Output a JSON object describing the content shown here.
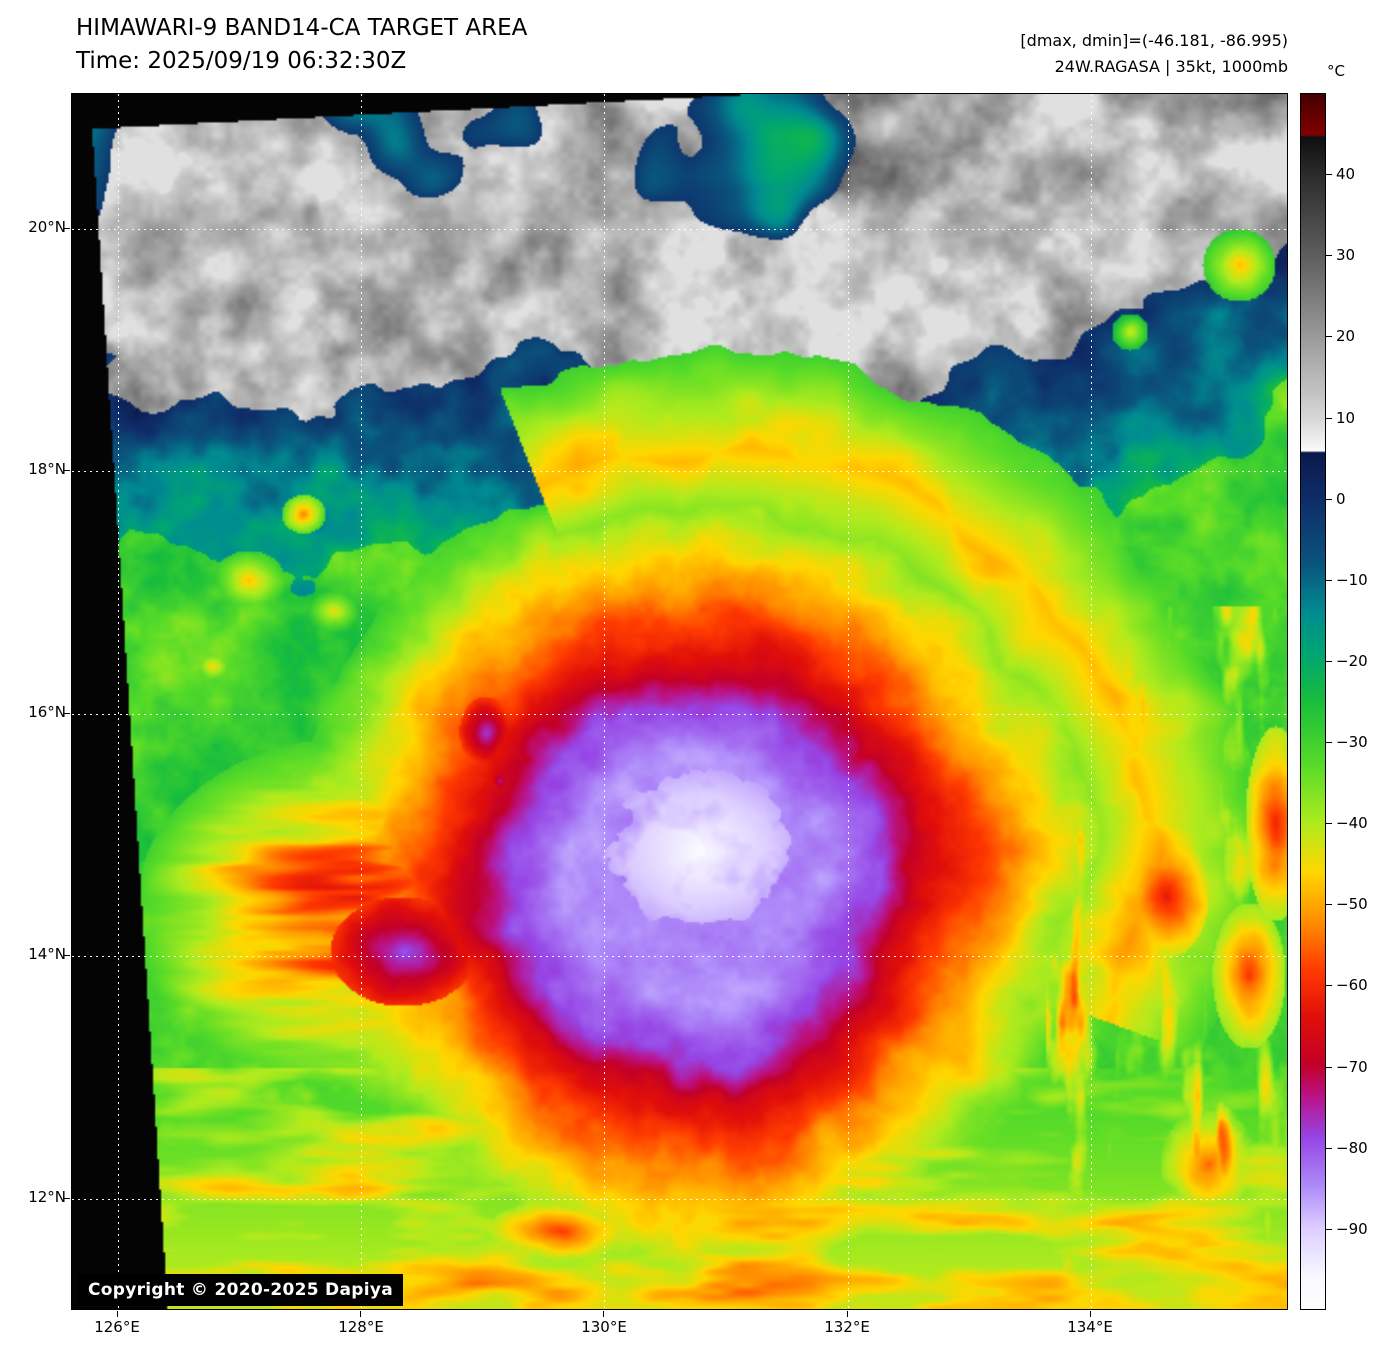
{
  "header": {
    "title": "HIMAWARI-9 BAND14-CA TARGET AREA",
    "time": "Time: 2025/09/19 06:32:30Z",
    "dmax_dmin": "[dmax, dmin]=(-46.181, -86.995)",
    "storm": "24W.RAGASA | 35kt, 1000mb"
  },
  "colorbar": {
    "unit": "°C",
    "ticks": [
      "40",
      "30",
      "20",
      "10",
      "0",
      "−10",
      "−20",
      "−30",
      "−40",
      "−50",
      "−60",
      "−70",
      "−80",
      "−90"
    ]
  },
  "axes": {
    "lat": [
      "20°N",
      "18°N",
      "16°N",
      "14°N",
      "12°N"
    ],
    "lon": [
      "126°E",
      "128°E",
      "130°E",
      "132°E",
      "134°E"
    ]
  },
  "footer": {
    "copyright": "Copyright © 2020-2025 Dapiya"
  }
}
